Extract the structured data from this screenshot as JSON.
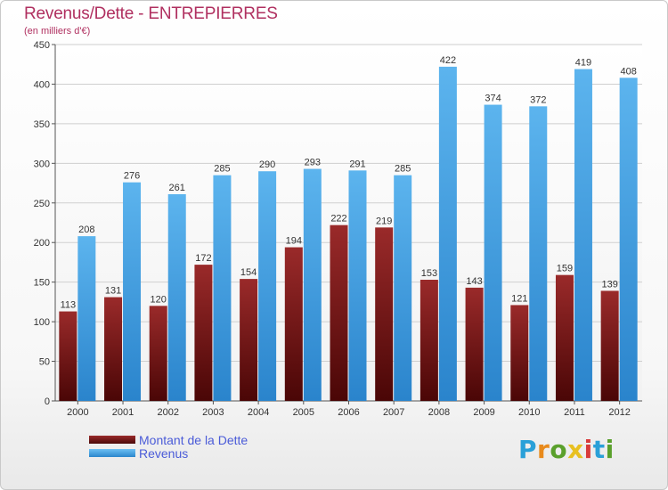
{
  "chart_data": {
    "type": "bar",
    "title": "Revenus/Dette - ENTREPIERRES",
    "subtitle": "(en milliers d'€)",
    "categories": [
      "2000",
      "2001",
      "2002",
      "2003",
      "2004",
      "2005",
      "2006",
      "2007",
      "2008",
      "2009",
      "2010",
      "2011",
      "2012"
    ],
    "series": [
      {
        "name": "Montant de la Dette",
        "values": [
          113,
          131,
          120,
          172,
          154,
          194,
          222,
          219,
          153,
          143,
          121,
          159,
          139
        ],
        "color": "#7a1c1c"
      },
      {
        "name": "Revenus",
        "values": [
          208,
          276,
          261,
          285,
          290,
          293,
          291,
          285,
          422,
          374,
          372,
          419,
          408
        ],
        "color": "#3a9ee0"
      }
    ],
    "ylim": [
      0,
      450
    ],
    "yticks": [
      0,
      50,
      100,
      150,
      200,
      250,
      300,
      350,
      400,
      450
    ],
    "grid": true,
    "legend": "bottom-left"
  },
  "logo": {
    "letters": [
      "P",
      "r",
      "o",
      "x",
      "i",
      "t",
      "i"
    ],
    "colors": [
      "#2aa0d8",
      "#e88a1c",
      "#5aa02c",
      "#e8c020",
      "#d83a3a",
      "#2aa0d8",
      "#5aa02c"
    ]
  }
}
